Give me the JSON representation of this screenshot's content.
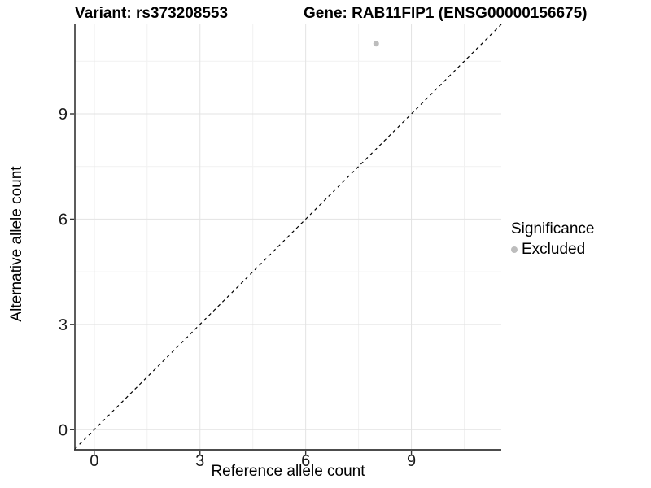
{
  "chart_data": {
    "type": "scatter",
    "title_left": "Variant: rs373208553",
    "title_right": "Gene: RAB11FIP1 (ENSG00000156675)",
    "xlabel": "Reference allele count",
    "ylabel": "Alternative allele count",
    "xlim": [
      -0.55,
      11.55
    ],
    "ylim": [
      -0.55,
      11.55
    ],
    "x_ticks": [
      0,
      3,
      6,
      9
    ],
    "y_ticks": [
      0,
      3,
      6,
      9
    ],
    "x_minor_ticks": [
      1.5,
      4.5,
      7.5,
      10.5
    ],
    "y_minor_ticks": [
      1.5,
      4.5,
      7.5,
      10.5
    ],
    "grid": "major and minor gridlines on white background",
    "legend_position": "right",
    "legend_title": "Significance",
    "series": [
      {
        "name": "Excluded",
        "color": "#bdbdbd",
        "points": [
          {
            "x": 8,
            "y": 11
          }
        ]
      }
    ],
    "reference_line": {
      "kind": "identity",
      "equation": "y = x",
      "style": "dashed",
      "color": "#000000"
    }
  },
  "colors": {
    "background": "#ffffff",
    "axis_line": "#333333",
    "grid_major": "#e3e3e3",
    "grid_minor": "#f1f1f1",
    "tick_text": "#1a1a1a",
    "point": "#bdbdbd"
  }
}
